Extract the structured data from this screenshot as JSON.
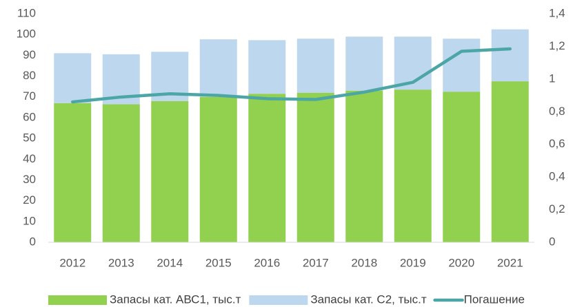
{
  "chart_data": {
    "type": "bar",
    "categories": [
      "2012",
      "2013",
      "2014",
      "2015",
      "2016",
      "2017",
      "2018",
      "2019",
      "2020",
      "2021"
    ],
    "series": [
      {
        "name": "Запасы кат. АВС1, тыс.т",
        "color": "#92d050",
        "values": [
          67,
          66.5,
          68,
          70,
          71.5,
          72,
          73,
          73.5,
          72.5,
          77.5
        ]
      },
      {
        "name": "Запасы кат. С2, тыс.т",
        "color": "#bdd7ee",
        "values": [
          24,
          24,
          23.7,
          27.7,
          25.8,
          26,
          26,
          25.5,
          25.5,
          25
        ]
      },
      {
        "name": "Погашение",
        "color": "#4ca6a5",
        "type": "line",
        "axis": "y2",
        "values": [
          0.86,
          0.89,
          0.91,
          0.9,
          0.88,
          0.875,
          0.92,
          0.98,
          1.17,
          1.185
        ]
      }
    ],
    "stacked": true,
    "ylim": [
      0,
      110
    ],
    "yticks": [
      0,
      10,
      20,
      30,
      40,
      50,
      60,
      70,
      80,
      90,
      100,
      110
    ],
    "y2lim": [
      0,
      1.4
    ],
    "y2ticks": [
      0,
      {
        "value": 0.2,
        "label": "0,2"
      },
      {
        "value": 0.4,
        "label": "0,4"
      },
      {
        "value": 0.6,
        "label": "0,6"
      },
      {
        "value": 0.8,
        "label": "0,8"
      },
      1,
      {
        "value": 1.2,
        "label": "1,2"
      },
      {
        "value": 1.4,
        "label": "1,4"
      }
    ],
    "grid": false,
    "legend": "bottom"
  }
}
